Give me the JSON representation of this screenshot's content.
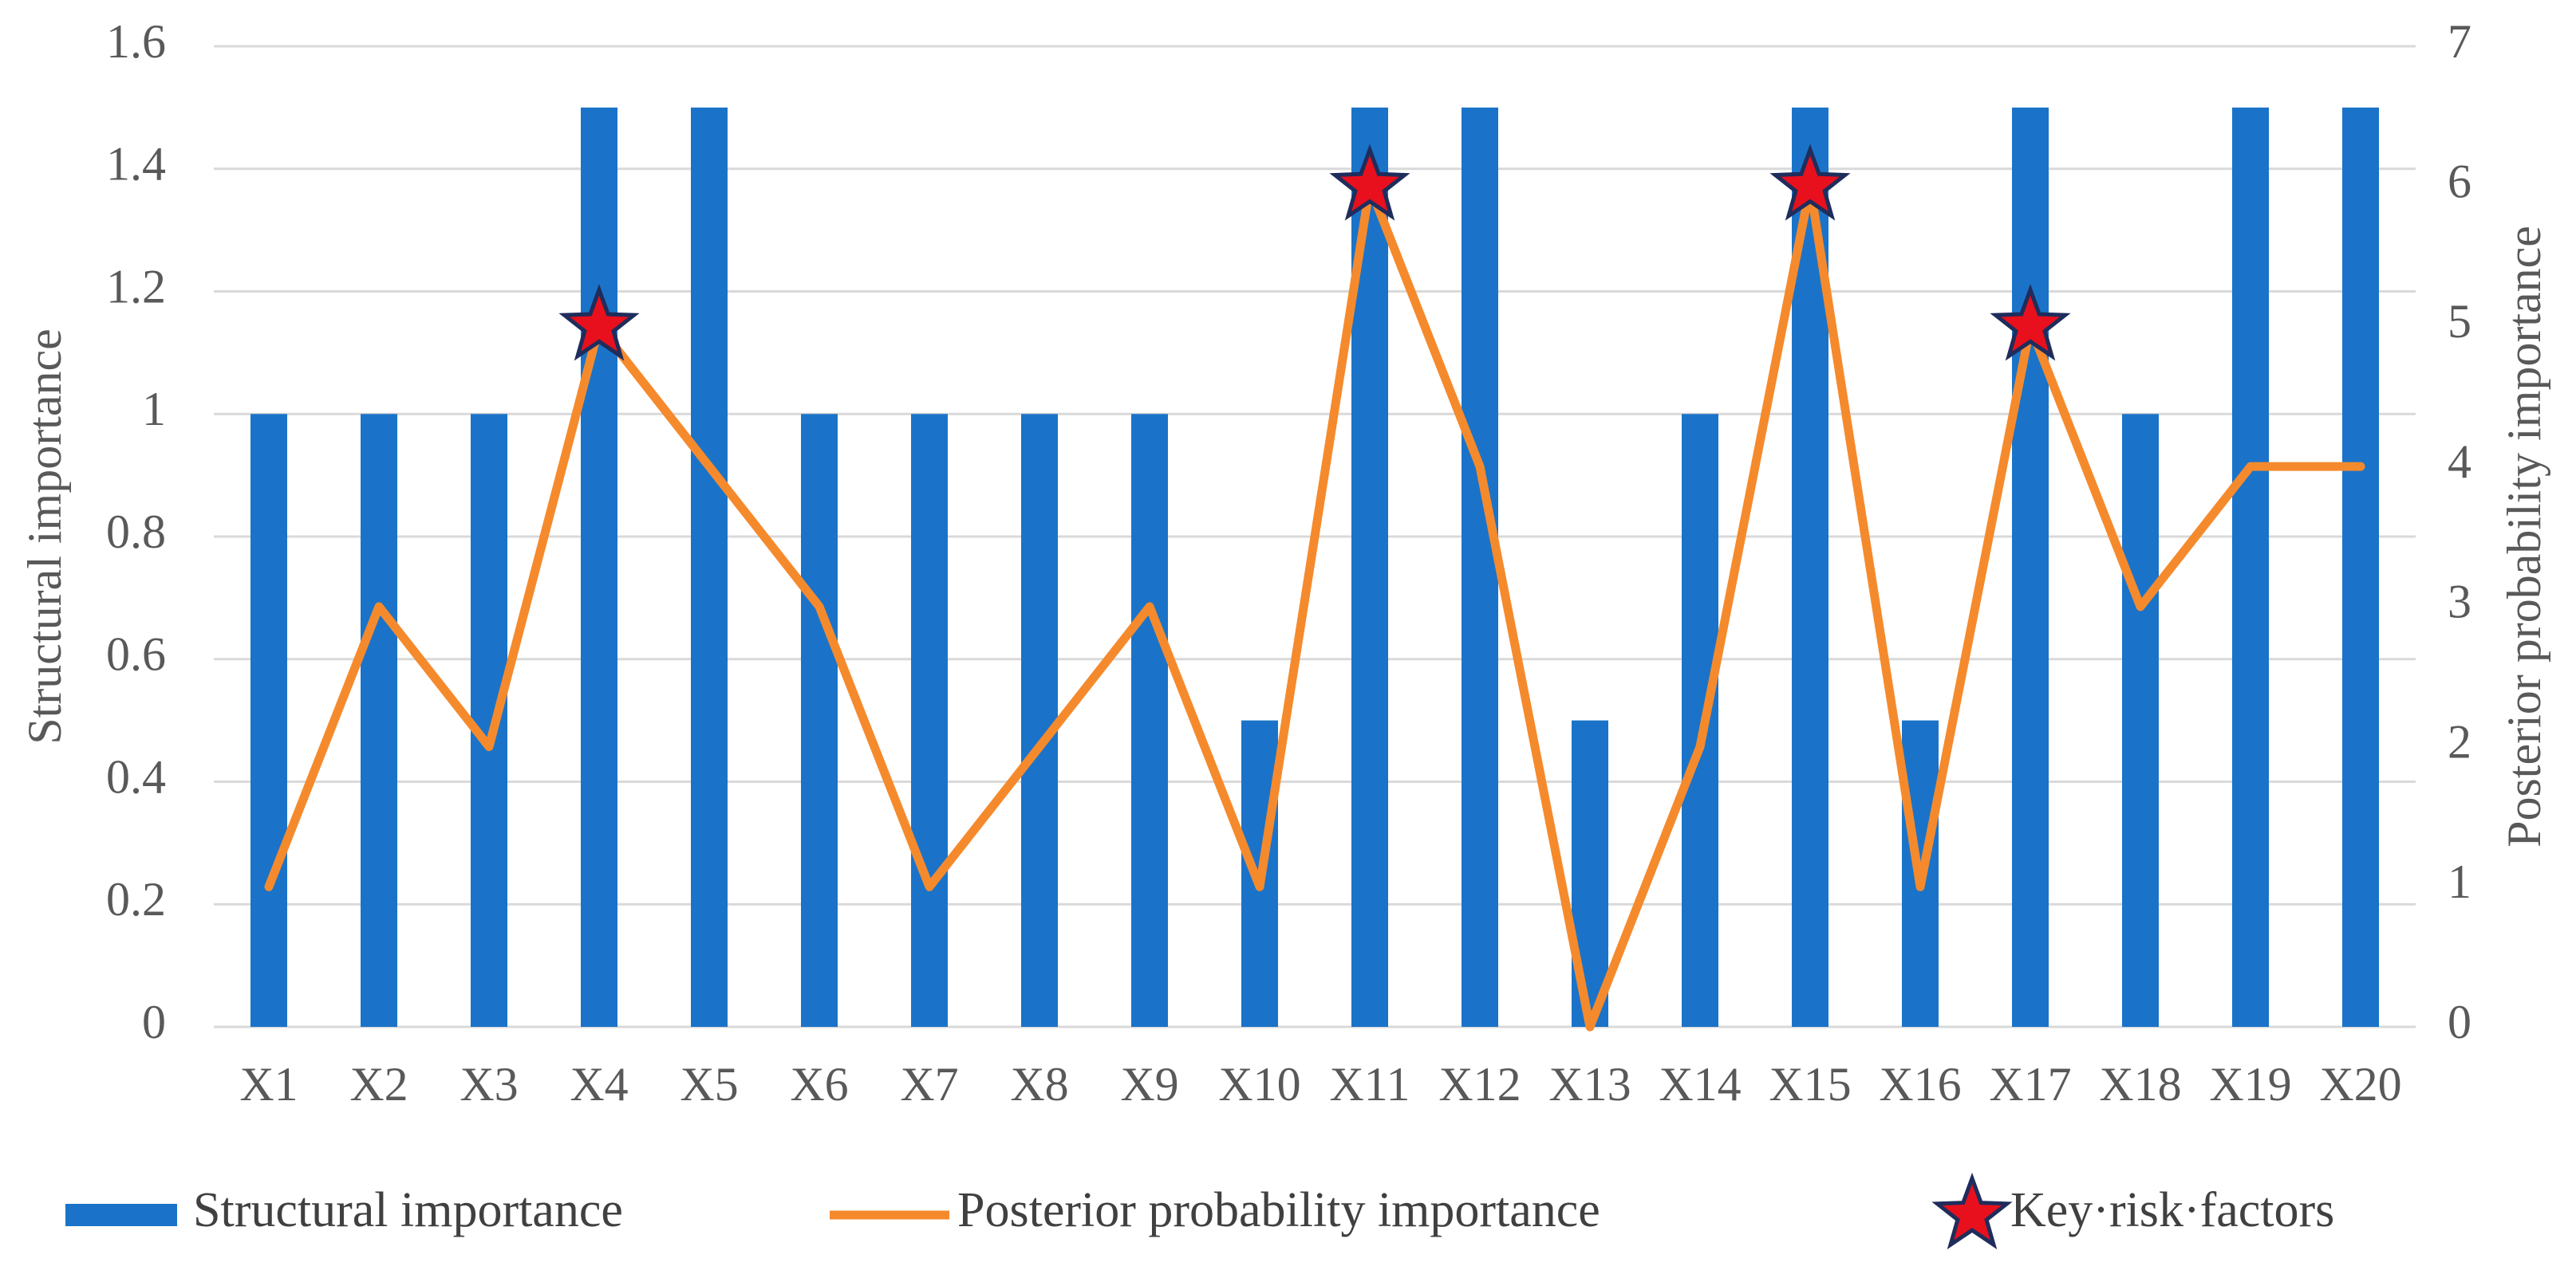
{
  "chart_data": {
    "type": "bar",
    "y_label": "Structural importance",
    "y2_label": "Posterior probability importance",
    "categories": [
      "X1",
      "X2",
      "X3",
      "X4",
      "X5",
      "X6",
      "X7",
      "X8",
      "X9",
      "X10",
      "X11",
      "X12",
      "X13",
      "X14",
      "X15",
      "X16",
      "X17",
      "X18",
      "X19",
      "X20"
    ],
    "series": [
      {
        "name": "Structural importance",
        "type": "bar",
        "axis": "y",
        "color": "#1a73c8",
        "values": [
          1,
          1,
          1,
          1.5,
          1.5,
          1,
          1,
          1,
          1,
          0.5,
          1.5,
          1.5,
          0.5,
          1,
          1.5,
          0.5,
          1.5,
          1,
          1.5,
          1.5
        ]
      },
      {
        "name": "Posterior probability importance",
        "type": "line",
        "axis": "y2",
        "color": "#f58a2d",
        "values": [
          1,
          3,
          2,
          5,
          4,
          3,
          1,
          2,
          3,
          1,
          6,
          4,
          0,
          2,
          6,
          1,
          5,
          3,
          4,
          4
        ]
      },
      {
        "name": "Key·risk·factors",
        "type": "scatter",
        "axis": "y2",
        "color": "#e8101c",
        "values": [
          null,
          null,
          null,
          5,
          null,
          null,
          null,
          null,
          null,
          null,
          6,
          null,
          null,
          null,
          6,
          null,
          5,
          null,
          null,
          null
        ]
      }
    ],
    "ylim": [
      0,
      1.6
    ],
    "yticks": [
      0,
      0.2,
      0.4,
      0.6,
      0.8,
      1,
      1.2,
      1.4,
      1.6
    ],
    "y2lim": [
      0,
      7
    ],
    "y2ticks": [
      0,
      1,
      2,
      3,
      4,
      5,
      6,
      7
    ],
    "grid": true,
    "legend": "bottom"
  }
}
